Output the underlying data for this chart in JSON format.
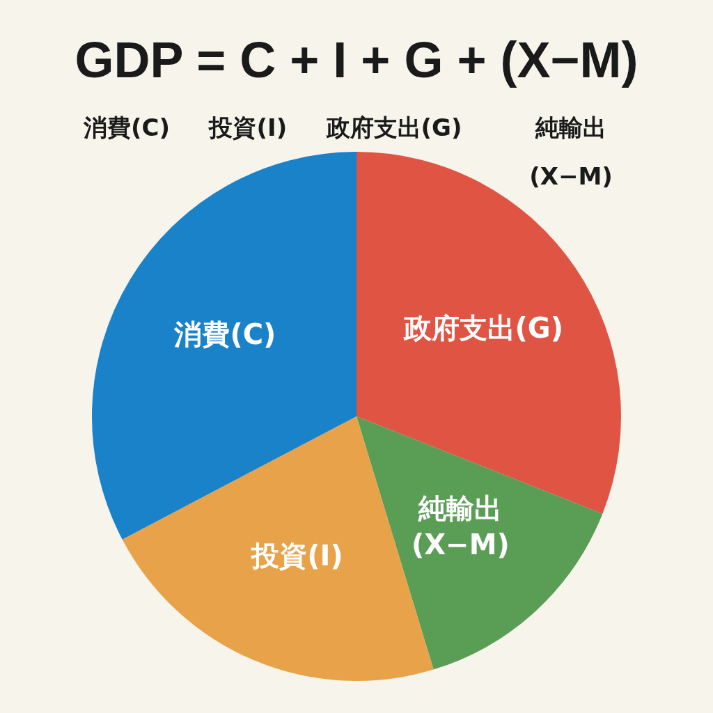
{
  "chart_data": {
    "type": "pie",
    "title": "GDP = C + I + G + (X−M)",
    "annotations": [
      "消費(C)",
      "投資(I)",
      "政府支出(G)",
      "純輸出(X−M)"
    ],
    "categories": [
      "政府支出(G)",
      "純輸出(X−M)",
      "投資(I)",
      "消費(C)"
    ],
    "values": [
      31,
      14.3,
      22,
      32.7
    ],
    "colors": [
      "#e05444",
      "#5a9e55",
      "#e8a24a",
      "#1a82c8"
    ]
  }
}
